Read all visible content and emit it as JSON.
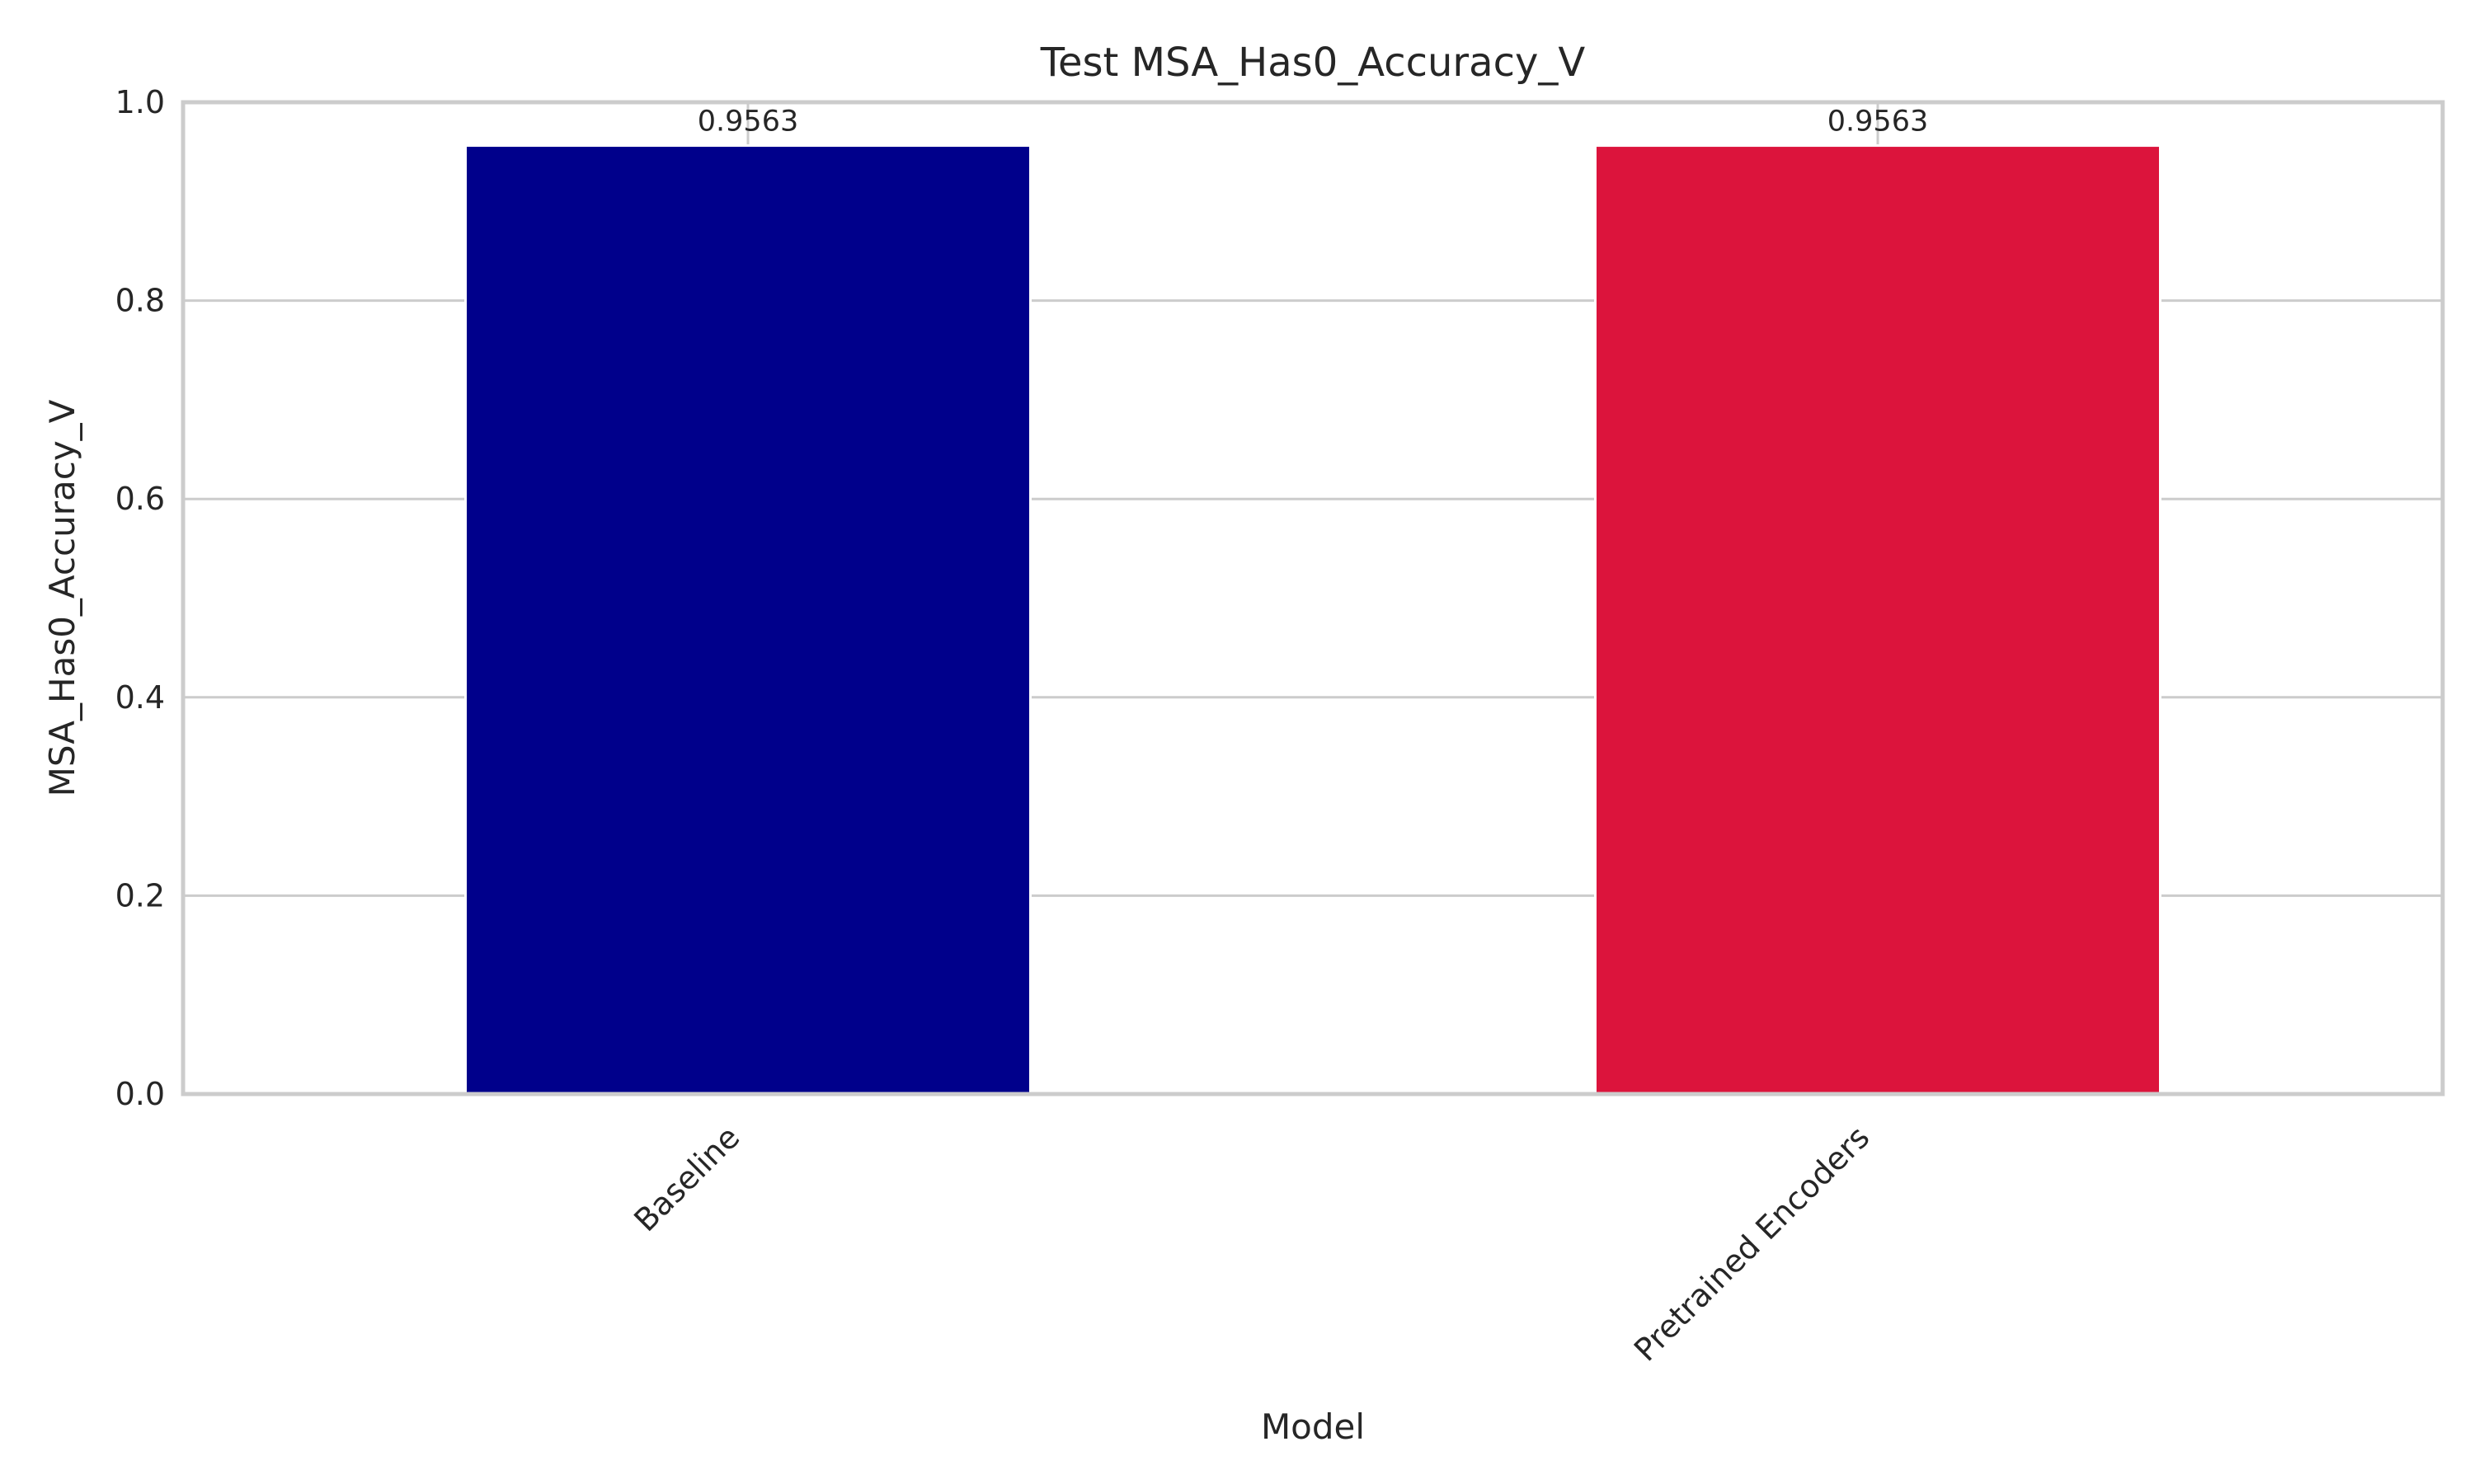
{
  "chart_data": {
    "type": "bar",
    "title": "Test MSA_Has0_Accuracy_V",
    "xlabel": "Model",
    "ylabel": "MSA_Has0_Accuracy_V",
    "categories": [
      "Baseline",
      "Pretrained Encoders"
    ],
    "values": [
      0.9563,
      0.9563
    ],
    "data_labels": [
      "0.9563",
      "0.9563"
    ],
    "colors": [
      "#00008b",
      "#dc143c"
    ],
    "ylim": [
      0,
      1.0
    ],
    "yticks": [
      0.0,
      0.2,
      0.4,
      0.6,
      0.8,
      1.0
    ],
    "ytick_labels": [
      "0.0",
      "0.2",
      "0.4",
      "0.6",
      "0.8",
      "1.0"
    ],
    "grid": true,
    "legend": false
  }
}
